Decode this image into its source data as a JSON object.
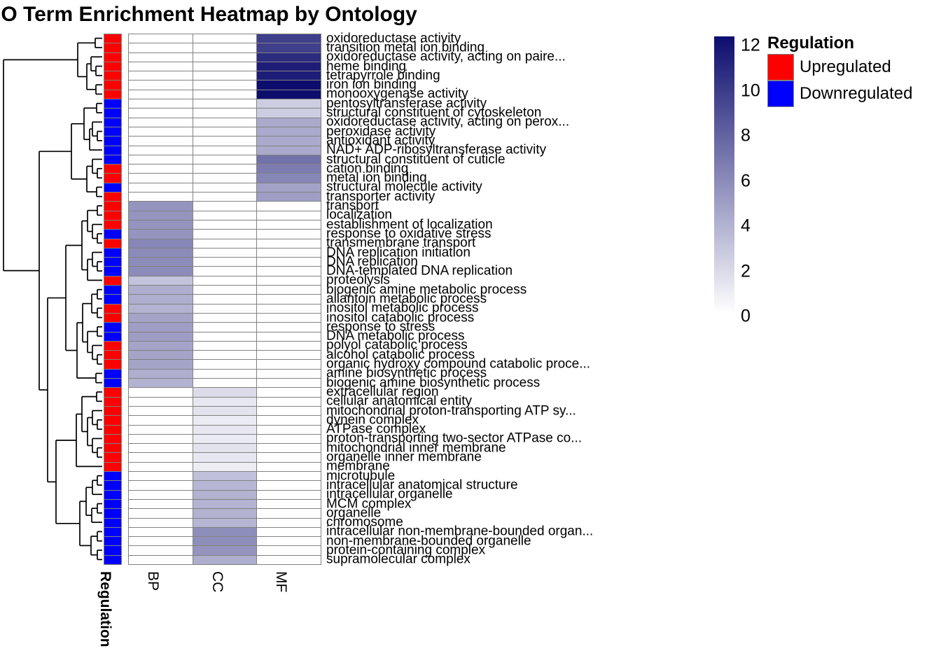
{
  "title": "GO Term Enrichment Heatmap by Ontology",
  "colors": {
    "navy_max": "#0d0d6e",
    "white_min": "#ffffff",
    "grid": "#828282",
    "upregulated": "#ff0000",
    "downregulated": "#0000ff",
    "text": "#000000"
  },
  "legend": {
    "ticks": [
      12,
      10,
      8,
      6,
      4,
      2,
      0
    ],
    "max": 12,
    "min": 0
  },
  "regulation_legend": {
    "title": "Regulation",
    "items": [
      {
        "label": "Upregulated",
        "color": "#ff0000"
      },
      {
        "label": "Downregulated",
        "color": "#0000ff"
      }
    ]
  },
  "chart_data": {
    "type": "heatmap",
    "title": "GO Term Enrichment Heatmap by Ontology",
    "columns": [
      "BP",
      "CC",
      "MF"
    ],
    "annotation_column_label": "Regulation",
    "value_range": [
      0,
      12
    ],
    "colormap": "white-to-navy",
    "rows": [
      {
        "label": "oxidoreductase activity",
        "regulation": "Upregulated",
        "ontology": "MF",
        "value": 9.5
      },
      {
        "label": "transition metal ion binding",
        "regulation": "Upregulated",
        "ontology": "MF",
        "value": 9.5
      },
      {
        "label": "oxidoreductase activity, acting on paire...",
        "regulation": "Upregulated",
        "ontology": "MF",
        "value": 10.5
      },
      {
        "label": "heme binding",
        "regulation": "Upregulated",
        "ontology": "MF",
        "value": 11.2
      },
      {
        "label": "tetrapyrrole binding",
        "regulation": "Upregulated",
        "ontology": "MF",
        "value": 11.2
      },
      {
        "label": "iron ion binding",
        "regulation": "Upregulated",
        "ontology": "MF",
        "value": 12
      },
      {
        "label": "monooxygenase activity",
        "regulation": "Upregulated",
        "ontology": "MF",
        "value": 12
      },
      {
        "label": "pentosyltransferase activity",
        "regulation": "Downregulated",
        "ontology": "MF",
        "value": 2.5
      },
      {
        "label": "structural constituent of cytoskeleton",
        "regulation": "Downregulated",
        "ontology": "MF",
        "value": 2.5
      },
      {
        "label": "oxidoreductase activity, acting on perox...",
        "regulation": "Downregulated",
        "ontology": "MF",
        "value": 4.2
      },
      {
        "label": "peroxidase activity",
        "regulation": "Downregulated",
        "ontology": "MF",
        "value": 4.2
      },
      {
        "label": "antioxidant activity",
        "regulation": "Downregulated",
        "ontology": "MF",
        "value": 4.2
      },
      {
        "label": "NAD+ ADP-ribosyltransferase activity",
        "regulation": "Downregulated",
        "ontology": "MF",
        "value": 4.2
      },
      {
        "label": "structural constituent of cuticle",
        "regulation": "Downregulated",
        "ontology": "MF",
        "value": 7.0
      },
      {
        "label": "cation binding",
        "regulation": "Upregulated",
        "ontology": "MF",
        "value": 6.5
      },
      {
        "label": "metal ion binding",
        "regulation": "Upregulated",
        "ontology": "MF",
        "value": 6.0
      },
      {
        "label": "structural molecule activity",
        "regulation": "Downregulated",
        "ontology": "MF",
        "value": 4.6
      },
      {
        "label": "transporter activity",
        "regulation": "Upregulated",
        "ontology": "MF",
        "value": 4.8
      },
      {
        "label": "transport",
        "regulation": "Upregulated",
        "ontology": "BP",
        "value": 5.3
      },
      {
        "label": "localization",
        "regulation": "Upregulated",
        "ontology": "BP",
        "value": 5.3
      },
      {
        "label": "establishment of localization",
        "regulation": "Upregulated",
        "ontology": "BP",
        "value": 5.3
      },
      {
        "label": "response to oxidative stress",
        "regulation": "Downregulated",
        "ontology": "BP",
        "value": 5.3
      },
      {
        "label": "transmembrane transport",
        "regulation": "Upregulated",
        "ontology": "BP",
        "value": 6.0
      },
      {
        "label": "DNA replication initiation",
        "regulation": "Downregulated",
        "ontology": "BP",
        "value": 5.7
      },
      {
        "label": "DNA replication",
        "regulation": "Downregulated",
        "ontology": "BP",
        "value": 5.7
      },
      {
        "label": "DNA-templated DNA replication",
        "regulation": "Downregulated",
        "ontology": "BP",
        "value": 5.7
      },
      {
        "label": "proteolysis",
        "regulation": "Upregulated",
        "ontology": "BP",
        "value": 3.0
      },
      {
        "label": "biogenic amine metabolic process",
        "regulation": "Downregulated",
        "ontology": "BP",
        "value": 4.0
      },
      {
        "label": "allantoin metabolic process",
        "regulation": "Downregulated",
        "ontology": "BP",
        "value": 4.0
      },
      {
        "label": "inositol metabolic process",
        "regulation": "Upregulated",
        "ontology": "BP",
        "value": 3.8
      },
      {
        "label": "inositol catabolic process",
        "regulation": "Upregulated",
        "ontology": "BP",
        "value": 4.5
      },
      {
        "label": "response to stress",
        "regulation": "Downregulated",
        "ontology": "BP",
        "value": 4.8
      },
      {
        "label": "DNA metabolic process",
        "regulation": "Downregulated",
        "ontology": "BP",
        "value": 4.8
      },
      {
        "label": "polyol catabolic process",
        "regulation": "Upregulated",
        "ontology": "BP",
        "value": 4.5
      },
      {
        "label": "alcohol catabolic process",
        "regulation": "Upregulated",
        "ontology": "BP",
        "value": 4.5
      },
      {
        "label": "organic hydroxy compound catabolic proce...",
        "regulation": "Upregulated",
        "ontology": "BP",
        "value": 4.5
      },
      {
        "label": "amine biosynthetic process",
        "regulation": "Downregulated",
        "ontology": "BP",
        "value": 4.0
      },
      {
        "label": "biogenic amine biosynthetic process",
        "regulation": "Downregulated",
        "ontology": "BP",
        "value": 3.8
      },
      {
        "label": "extracellular region",
        "regulation": "Upregulated",
        "ontology": "CC",
        "value": 1.8
      },
      {
        "label": "cellular anatomical entity",
        "regulation": "Upregulated",
        "ontology": "CC",
        "value": 1.2
      },
      {
        "label": "mitochondrial proton-transporting ATP sy...",
        "regulation": "Upregulated",
        "ontology": "CC",
        "value": 1.4
      },
      {
        "label": "dynein complex",
        "regulation": "Upregulated",
        "ontology": "CC",
        "value": 1.0
      },
      {
        "label": "ATPase complex",
        "regulation": "Upregulated",
        "ontology": "CC",
        "value": 1.2
      },
      {
        "label": "proton-transporting two-sector ATPase co...",
        "regulation": "Upregulated",
        "ontology": "CC",
        "value": 1.0
      },
      {
        "label": "mitochondrial inner membrane",
        "regulation": "Upregulated",
        "ontology": "CC",
        "value": 1.4
      },
      {
        "label": "organelle inner membrane",
        "regulation": "Upregulated",
        "ontology": "CC",
        "value": 1.2
      },
      {
        "label": "membrane",
        "regulation": "Upregulated",
        "ontology": "CC",
        "value": 0.9
      },
      {
        "label": "microtubule",
        "regulation": "Downregulated",
        "ontology": "CC",
        "value": 3.1
      },
      {
        "label": "intracellular anatomical structure",
        "regulation": "Downregulated",
        "ontology": "CC",
        "value": 3.6
      },
      {
        "label": "intracellular organelle",
        "regulation": "Downregulated",
        "ontology": "CC",
        "value": 3.8
      },
      {
        "label": "MCM complex",
        "regulation": "Downregulated",
        "ontology": "CC",
        "value": 3.7
      },
      {
        "label": "organelle",
        "regulation": "Downregulated",
        "ontology": "CC",
        "value": 3.8
      },
      {
        "label": "chromosome",
        "regulation": "Downregulated",
        "ontology": "CC",
        "value": 3.6
      },
      {
        "label": "intracellular non-membrane-bounded organ...",
        "regulation": "Downregulated",
        "ontology": "CC",
        "value": 5.6
      },
      {
        "label": "non-membrane-bounded organelle",
        "regulation": "Downregulated",
        "ontology": "CC",
        "value": 5.6
      },
      {
        "label": "protein-containing complex",
        "regulation": "Downregulated",
        "ontology": "CC",
        "value": 5.3
      },
      {
        "label": "supramolecular complex",
        "regulation": "Downregulated",
        "ontology": "CC",
        "value": 4.0
      }
    ],
    "row_dendrogram": [
      14.1,
      [
        3.5,
        [
          1.0,
          0,
          1
        ],
        [
          2.2,
          [
            1.6,
            2,
            [
              0.9,
              3,
              4
            ]
          ],
          [
            0.9,
            5,
            6
          ]
        ]
      ],
      [
        9.0,
        [
          4.4,
          [
            2.6,
            [
              0.8,
              7,
              8
            ],
            [
              1.8,
              [
                1.4,
                9,
                [
                  0.7,
                  10,
                  11
                ]
              ],
              12
            ]
          ],
          [
            2.2,
            [
              1.4,
              13,
              [
                0.7,
                14,
                15
              ]
            ],
            [
              0.8,
              16,
              17
            ]
          ]
        ],
        [
          7.8,
          [
            5.2,
            [
              2.9,
              [
                2.1,
                [
                  0.7,
                  18,
                  19
                ],
                [
                  1.4,
                  20,
                  [
                    0.7,
                    21,
                    22
                  ]
                ]
              ],
              [
                2.1,
                [
                  1.4,
                  23,
                  [
                    0.7,
                    24,
                    25
                  ]
                ],
                26
              ]
            ],
            [
              3.6,
              [
                2.8,
                [
                  1.5,
                  [
                    0.7,
                    27,
                    28
                  ],
                  [
                    0.7,
                    29,
                    30
                  ]
                ],
                [
                  2.1,
                  [
                    0.7,
                    31,
                    32
                  ],
                  [
                    1.4,
                    33,
                    [
                      0.7,
                      34,
                      35
                    ]
                  ]
                ]
              ],
              [
                0.9,
                36,
                37
              ]
            ]
          ],
          [
            6.6,
            [
              3.7,
              [
                2.9,
                [
                  0.8,
                  38,
                  39
                ],
                [
                  2.1,
                  [
                    1.4,
                    40,
                    [
                      0.7,
                      41,
                      42
                    ]
                  ],
                  [
                    1.4,
                    43,
                    [
                      0.7,
                      44,
                      45
                    ]
                  ]
                ]
              ],
              46
            ],
            [
              3.2,
              [
                2.3,
                [
                  1.4,
                  [
                    0.7,
                    47,
                    48
                  ],
                  49
                ],
                [
                  1.5,
                  [
                    0.7,
                    50,
                    51
                  ],
                  52
                ]
              ],
              [
                1.6,
                [
                  0.7,
                  53,
                  54
                ],
                [
                  0.7,
                  55,
                  56
                ]
              ]
            ]
          ]
        ]
      ]
    ]
  }
}
